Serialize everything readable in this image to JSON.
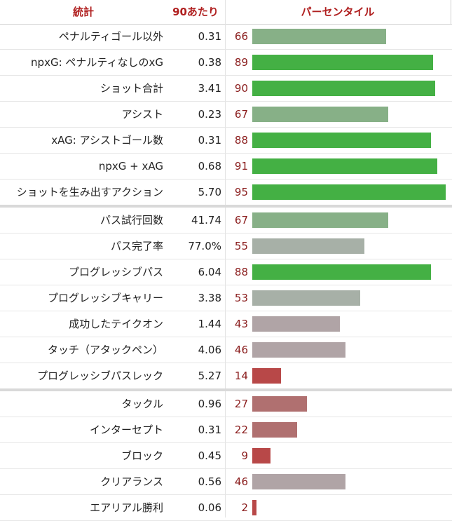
{
  "header": {
    "stat": "統計",
    "per90": "90あたり",
    "percentile": "パーセンタイル"
  },
  "colors": {
    "high": "#44b044",
    "mid_green": "#87b087",
    "neutral": "#a7b0a7",
    "muted": "#b0a4a6",
    "low": "#b07070",
    "lowest": "#b84848",
    "accent": "#b02020"
  },
  "groups": [
    {
      "rows": [
        {
          "label": "ペナルティゴール以外",
          "value": "0.31",
          "pct": 66,
          "pct_label": "66",
          "color": "#87b087"
        },
        {
          "label": "npxG: ペナルティなしのxG",
          "value": "0.38",
          "pct": 89,
          "pct_label": "89",
          "color": "#44b044"
        },
        {
          "label": "ショット合計",
          "value": "3.41",
          "pct": 90,
          "pct_label": "90",
          "color": "#44b044"
        },
        {
          "label": "アシスト",
          "value": "0.23",
          "pct": 67,
          "pct_label": "67",
          "color": "#87b087"
        },
        {
          "label": "xAG: アシストゴール数",
          "value": "0.31",
          "pct": 88,
          "pct_label": "88",
          "color": "#44b044"
        },
        {
          "label": "npxG + xAG",
          "value": "0.68",
          "pct": 91,
          "pct_label": "91",
          "color": "#44b044"
        },
        {
          "label": "ショットを生み出すアクション",
          "value": "5.70",
          "pct": 95,
          "pct_label": "95",
          "color": "#44b044"
        }
      ]
    },
    {
      "rows": [
        {
          "label": "パス試行回数",
          "value": "41.74",
          "pct": 67,
          "pct_label": "67",
          "color": "#87b087"
        },
        {
          "label": "パス完了率",
          "value": "77.0%",
          "pct": 55,
          "pct_label": "55",
          "color": "#a7b0a7"
        },
        {
          "label": "プログレッシブパス",
          "value": "6.04",
          "pct": 88,
          "pct_label": "88",
          "color": "#44b044"
        },
        {
          "label": "プログレッシブキャリー",
          "value": "3.38",
          "pct": 53,
          "pct_label": "53",
          "color": "#a7b0a7"
        },
        {
          "label": "成功したテイクオン",
          "value": "1.44",
          "pct": 43,
          "pct_label": "43",
          "color": "#b0a4a6"
        },
        {
          "label": "タッチ（アタックペン）",
          "value": "4.06",
          "pct": 46,
          "pct_label": "46",
          "color": "#b0a4a6"
        },
        {
          "label": "プログレッシブパスレック",
          "value": "5.27",
          "pct": 14,
          "pct_label": "14",
          "color": "#b84848"
        }
      ]
    },
    {
      "rows": [
        {
          "label": "タックル",
          "value": "0.96",
          "pct": 27,
          "pct_label": "27",
          "color": "#b07070"
        },
        {
          "label": "インターセプト",
          "value": "0.31",
          "pct": 22,
          "pct_label": "22",
          "color": "#b07070"
        },
        {
          "label": "ブロック",
          "value": "0.45",
          "pct": 9,
          "pct_label": "9",
          "color": "#b84848"
        },
        {
          "label": "クリアランス",
          "value": "0.56",
          "pct": 46,
          "pct_label": "46",
          "color": "#b0a4a6"
        },
        {
          "label": "エアリアル勝利",
          "value": "0.06",
          "pct": 2,
          "pct_label": "2",
          "color": "#b84848"
        }
      ]
    }
  ]
}
